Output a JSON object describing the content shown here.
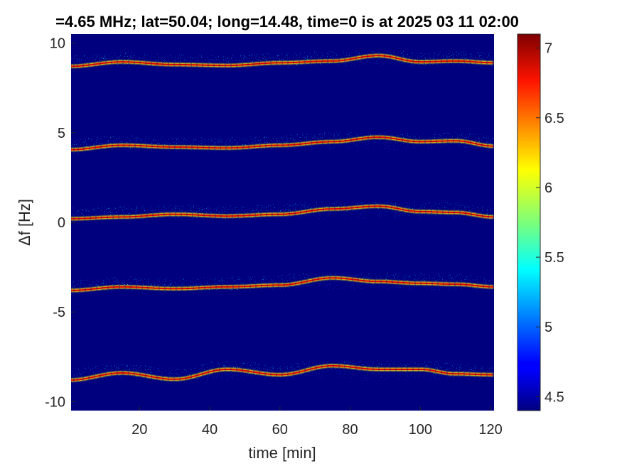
{
  "chart_data": {
    "type": "heatmap",
    "title": "=4.65 MHz;  lat=50.04; long=14.48, time=0 is at 2025 03 11 02:00",
    "xlabel": "time [min]",
    "ylabel": "Δf [Hz]",
    "xlim": [
      0.5,
      121
    ],
    "ylim": [
      -10.5,
      10.5
    ],
    "x_ticks": [
      20,
      40,
      60,
      80,
      100,
      120
    ],
    "x_tick_labels": [
      "20",
      "40",
      "60",
      "80",
      "100",
      "120"
    ],
    "y_ticks": [
      10,
      5,
      0,
      -5,
      -10
    ],
    "y_tick_labels": [
      "10",
      "5",
      "0",
      "-5",
      "-10"
    ],
    "colorbar": {
      "colormap": "jet",
      "range": [
        4.4,
        7.1
      ],
      "ticks": [
        7,
        6.5,
        6,
        5.5,
        5,
        4.5
      ],
      "tick_labels": [
        "7",
        "6.5",
        "6",
        "5.5",
        "5",
        "4.5"
      ]
    },
    "background_value": 4.4,
    "series": [
      {
        "center_hz": 8.8,
        "trace": [
          [
            0,
            8.7
          ],
          [
            15,
            8.95
          ],
          [
            30,
            8.8
          ],
          [
            45,
            8.75
          ],
          [
            60,
            8.9
          ],
          [
            75,
            9.0
          ],
          [
            88,
            9.3
          ],
          [
            100,
            8.95
          ],
          [
            110,
            9.0
          ],
          [
            121,
            8.9
          ]
        ]
      },
      {
        "center_hz": 4.2,
        "trace": [
          [
            0,
            4.05
          ],
          [
            15,
            4.3
          ],
          [
            30,
            4.2
          ],
          [
            45,
            4.15
          ],
          [
            60,
            4.3
          ],
          [
            75,
            4.5
          ],
          [
            88,
            4.75
          ],
          [
            100,
            4.5
          ],
          [
            110,
            4.55
          ],
          [
            121,
            4.25
          ]
        ]
      },
      {
        "center_hz": 0.4,
        "trace": [
          [
            0,
            0.2
          ],
          [
            15,
            0.3
          ],
          [
            30,
            0.45
          ],
          [
            45,
            0.35
          ],
          [
            60,
            0.45
          ],
          [
            75,
            0.75
          ],
          [
            88,
            0.9
          ],
          [
            100,
            0.6
          ],
          [
            110,
            0.55
          ],
          [
            121,
            0.3
          ]
        ]
      },
      {
        "center_hz": -3.6,
        "trace": [
          [
            0,
            -3.8
          ],
          [
            15,
            -3.6
          ],
          [
            30,
            -3.7
          ],
          [
            45,
            -3.6
          ],
          [
            60,
            -3.5
          ],
          [
            75,
            -3.1
          ],
          [
            88,
            -3.3
          ],
          [
            100,
            -3.4
          ],
          [
            110,
            -3.45
          ],
          [
            121,
            -3.6
          ]
        ]
      },
      {
        "center_hz": -8.6,
        "trace": [
          [
            0,
            -8.8
          ],
          [
            15,
            -8.4
          ],
          [
            30,
            -8.75
          ],
          [
            45,
            -8.2
          ],
          [
            60,
            -8.5
          ],
          [
            75,
            -8.0
          ],
          [
            88,
            -8.2
          ],
          [
            100,
            -8.2
          ],
          [
            110,
            -8.45
          ],
          [
            121,
            -8.5
          ]
        ]
      }
    ],
    "line_color": "#e00000",
    "grid": false
  }
}
